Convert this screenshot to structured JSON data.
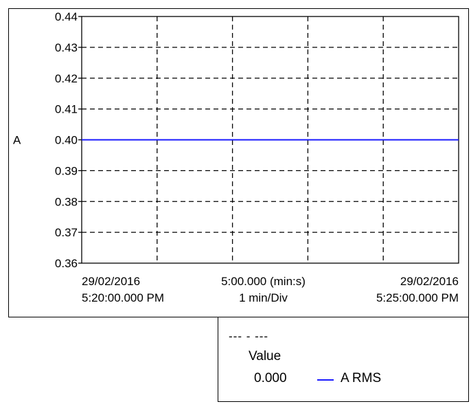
{
  "chart_data": {
    "type": "line",
    "ylabel": "A",
    "ylim": [
      0.36,
      0.44
    ],
    "yticks": [
      "0.44",
      "0.43",
      "0.42",
      "0.41",
      "0.40",
      "0.39",
      "0.38",
      "0.37",
      "0.36"
    ],
    "xlim": [
      0,
      5
    ],
    "x_divisions": 5,
    "grid": true,
    "x_start_label": [
      "29/02/2016",
      "5:20:00.000 PM"
    ],
    "x_center_label": [
      "5:00.000 (min:s)",
      "1 min/Div"
    ],
    "x_end_label": [
      "29/02/2016",
      "5:25:00.000 PM"
    ],
    "series": [
      {
        "name": "A RMS",
        "color": "#1a1aff",
        "x": [
          0,
          5
        ],
        "values": [
          0.4,
          0.4
        ]
      }
    ]
  },
  "legend": {
    "header": "--- - ---",
    "column_label": "Value",
    "rows": [
      {
        "value": "0.000",
        "name": "A RMS",
        "color": "#1a1aff"
      }
    ]
  }
}
